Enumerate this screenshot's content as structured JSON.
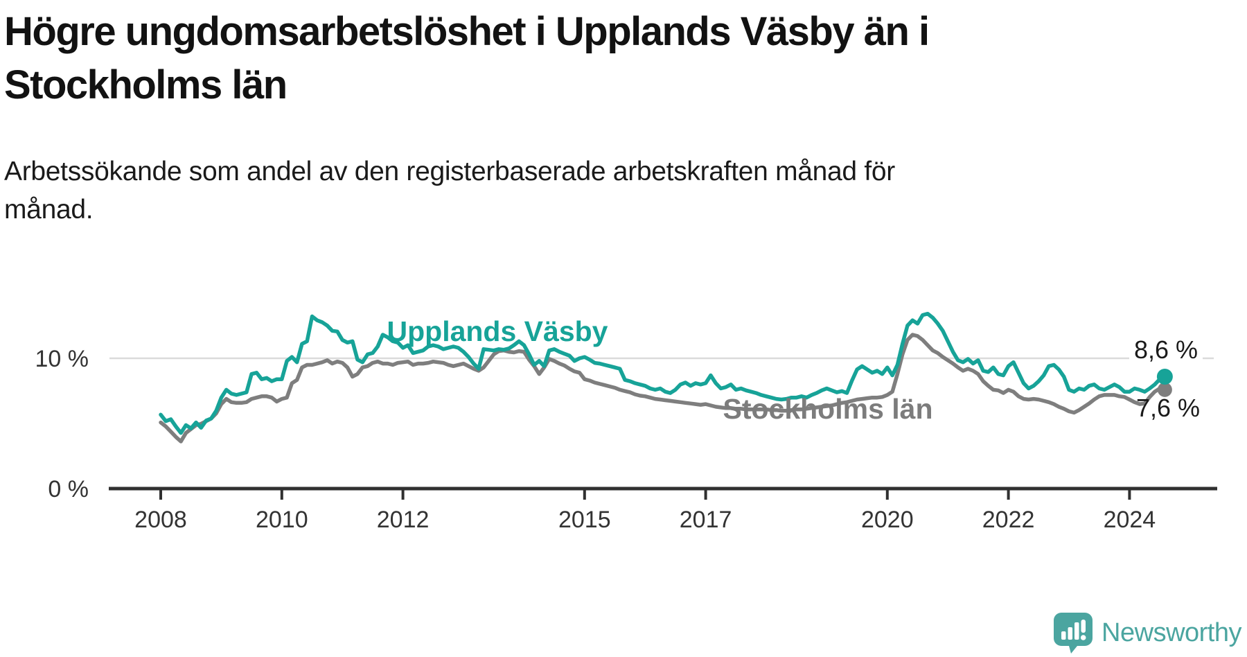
{
  "title": {
    "line1": "Högre ungdomsarbetslöshet i Upplands Väsby än i",
    "line2": "Stockholms län"
  },
  "subtitle": {
    "line1": "Arbetssökande som andel av den registerbaserade arbetskraften månad för",
    "line2": "månad."
  },
  "colors": {
    "accent_teal": "#17a398",
    "series_gray": "#7e7e7e",
    "gridline": "#dadada",
    "axis": "#303030",
    "text_dark": "#1a1a1a",
    "logo_teal": "#4ba5a0"
  },
  "chart_data": {
    "type": "line",
    "unit": "%",
    "frequency": "monthly",
    "x_start": "2008-01",
    "x_end": "2024-08",
    "x_ticks": [
      2008,
      2010,
      2012,
      2015,
      2017,
      2020,
      2022,
      2024
    ],
    "y_ticks": [
      {
        "value": 0,
        "label": "0 %"
      },
      {
        "value": 10,
        "label": "10 %"
      }
    ],
    "ylim": [
      0,
      14.5
    ],
    "grid": "single horizontal gridline at 10 %",
    "legend_position": "labels drawn on chart next to lines",
    "series": [
      {
        "name": "Upplands Väsby",
        "color": "#17a398",
        "end_label": "8,6 %",
        "end_value": 8.6,
        "values": [
          5.7,
          5.2,
          5.35,
          4.8,
          4.3,
          4.9,
          4.65,
          5.1,
          4.7,
          5.25,
          5.4,
          6.0,
          7.0,
          7.6,
          7.3,
          7.2,
          7.3,
          7.4,
          8.8,
          8.9,
          8.4,
          8.5,
          8.25,
          8.4,
          8.4,
          9.8,
          10.1,
          9.7,
          11.1,
          11.3,
          13.2,
          12.9,
          12.75,
          12.5,
          12.1,
          12.05,
          11.4,
          11.2,
          11.3,
          9.9,
          9.7,
          10.3,
          10.4,
          10.9,
          11.8,
          11.6,
          11.3,
          11.2,
          10.8,
          11.0,
          10.4,
          10.5,
          10.6,
          10.9,
          11.0,
          10.9,
          10.7,
          10.8,
          10.9,
          10.8,
          10.5,
          10.1,
          9.6,
          9.2,
          10.7,
          10.65,
          10.6,
          10.7,
          10.65,
          10.75,
          11.0,
          11.3,
          11.0,
          10.3,
          9.5,
          9.8,
          9.4,
          10.6,
          10.7,
          10.5,
          10.35,
          10.2,
          9.8,
          10.0,
          10.1,
          9.9,
          9.65,
          9.6,
          9.5,
          9.4,
          9.3,
          9.2,
          8.35,
          8.25,
          8.1,
          8.0,
          7.9,
          7.7,
          7.6,
          7.7,
          7.45,
          7.35,
          7.6,
          8.0,
          8.15,
          7.9,
          8.1,
          8.0,
          8.1,
          8.7,
          8.1,
          7.7,
          7.8,
          8.0,
          7.6,
          7.7,
          7.55,
          7.45,
          7.35,
          7.2,
          7.1,
          7.0,
          6.9,
          6.85,
          6.9,
          7.0,
          7.0,
          7.1,
          7.0,
          7.2,
          7.35,
          7.55,
          7.7,
          7.55,
          7.4,
          7.5,
          7.35,
          8.3,
          9.15,
          9.4,
          9.15,
          8.9,
          9.05,
          8.8,
          9.3,
          8.7,
          9.5,
          11.1,
          12.5,
          12.9,
          12.65,
          13.3,
          13.4,
          13.1,
          12.65,
          12.1,
          11.3,
          10.5,
          9.85,
          9.7,
          9.95,
          9.6,
          9.85,
          9.05,
          8.95,
          9.3,
          8.8,
          8.7,
          9.4,
          9.7,
          8.9,
          8.1,
          7.7,
          7.9,
          8.25,
          8.7,
          9.4,
          9.5,
          9.15,
          8.6,
          7.6,
          7.45,
          7.7,
          7.6,
          7.9,
          8.0,
          7.7,
          7.6,
          7.8,
          8.0,
          7.8,
          7.45,
          7.45,
          7.7,
          7.6,
          7.45,
          7.7,
          8.0,
          8.4,
          8.6
        ]
      },
      {
        "name": "Stockholms län",
        "color": "#7e7e7e",
        "end_label": "7,6 %",
        "end_value": 7.6,
        "values": [
          5.1,
          4.8,
          4.4,
          4.0,
          3.65,
          4.3,
          4.6,
          4.9,
          5.0,
          5.2,
          5.4,
          5.8,
          6.5,
          6.9,
          6.65,
          6.6,
          6.6,
          6.65,
          6.9,
          7.0,
          7.1,
          7.1,
          7.0,
          6.7,
          6.9,
          7.0,
          8.1,
          8.35,
          9.3,
          9.5,
          9.5,
          9.6,
          9.7,
          9.85,
          9.6,
          9.75,
          9.65,
          9.3,
          8.6,
          8.8,
          9.3,
          9.4,
          9.65,
          9.75,
          9.6,
          9.6,
          9.5,
          9.65,
          9.7,
          9.75,
          9.5,
          9.6,
          9.6,
          9.65,
          9.75,
          9.7,
          9.65,
          9.5,
          9.4,
          9.5,
          9.6,
          9.4,
          9.2,
          9.05,
          9.3,
          9.8,
          10.3,
          10.55,
          10.6,
          10.5,
          10.45,
          10.55,
          10.5,
          9.9,
          9.4,
          8.8,
          9.3,
          9.95,
          9.8,
          9.6,
          9.45,
          9.2,
          9.0,
          8.9,
          8.4,
          8.3,
          8.15,
          8.05,
          7.95,
          7.85,
          7.75,
          7.6,
          7.5,
          7.4,
          7.25,
          7.15,
          7.1,
          7.0,
          6.9,
          6.85,
          6.8,
          6.75,
          6.7,
          6.65,
          6.6,
          6.55,
          6.5,
          6.45,
          6.5,
          6.4,
          6.3,
          6.25,
          6.2,
          6.2,
          6.15,
          6.15,
          6.1,
          6.1,
          6.1,
          6.1,
          6.1,
          6.05,
          6.05,
          6.0,
          6.0,
          6.05,
          6.1,
          6.1,
          6.15,
          6.2,
          6.25,
          6.3,
          6.35,
          6.4,
          6.5,
          6.6,
          6.65,
          6.75,
          6.85,
          6.9,
          6.95,
          7.0,
          7.0,
          7.05,
          7.2,
          7.45,
          8.8,
          10.3,
          11.4,
          11.8,
          11.7,
          11.4,
          11.0,
          10.6,
          10.4,
          10.1,
          9.85,
          9.6,
          9.3,
          9.05,
          9.2,
          9.05,
          8.8,
          8.25,
          7.9,
          7.6,
          7.55,
          7.35,
          7.6,
          7.45,
          7.1,
          6.9,
          6.85,
          6.9,
          6.85,
          6.75,
          6.65,
          6.5,
          6.3,
          6.15,
          5.95,
          5.85,
          6.05,
          6.3,
          6.55,
          6.85,
          7.1,
          7.2,
          7.2,
          7.2,
          7.1,
          7.05,
          6.85,
          6.65,
          6.5,
          6.55,
          7.05,
          7.45,
          7.7,
          7.6
        ]
      }
    ]
  },
  "logo": {
    "text": "Newsworthy",
    "icon": "newsworthy-bar-chart-bubble-icon"
  }
}
